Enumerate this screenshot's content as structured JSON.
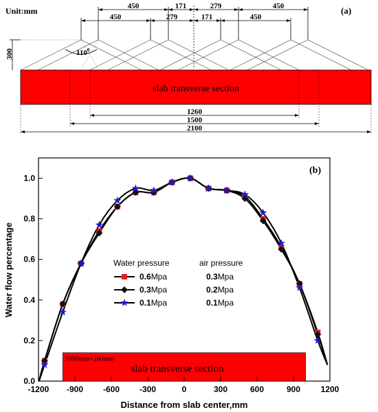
{
  "panel_a": {
    "label": "(a)",
    "unit": "Unit:mm",
    "height_dim": "300",
    "angle": "110",
    "angle_sup": "0",
    "slab_label": "slab transverse section",
    "top_dims": {
      "left_outer": "450",
      "left_inner": "450",
      "left_mid_upper": "171",
      "left_mid_lower": "279",
      "right_mid_upper": "279",
      "right_mid_lower": "171",
      "right_inner": "450",
      "right_outer": "450"
    },
    "bottom_dims": [
      "1260",
      "1500",
      "2100"
    ]
  },
  "chart_data": {
    "type": "line",
    "panel_label": "(b)",
    "xlabel": "Distance from slab center,mm",
    "ylabel": "Water flow percentage",
    "xlim": [
      -1200,
      1200
    ],
    "ylim": [
      0.0,
      1.1
    ],
    "xticks": [
      "-1200",
      "-900",
      "-600",
      "-300",
      "0",
      "300",
      "600",
      "900",
      "1200"
    ],
    "yticks": [
      "0.0",
      "0.2",
      "0.4",
      "0.6",
      "0.8",
      "1.0"
    ],
    "slab_label": "slab transverse section",
    "slab_size": "2000mm×280mm",
    "slab_x": [
      -1000,
      1000
    ],
    "slab_y": [
      0.0,
      0.14
    ],
    "x": [
      -1150,
      -1000,
      -850,
      -700,
      -550,
      -400,
      -250,
      -100,
      50,
      200,
      350,
      500,
      650,
      800,
      950,
      1100
    ],
    "series": [
      {
        "name": "0.6Mpa / 0.3Mpa",
        "color": "#e02020",
        "marker": "square",
        "values": [
          0.1,
          0.38,
          0.58,
          0.74,
          0.86,
          0.93,
          0.93,
          0.98,
          1.0,
          0.95,
          0.94,
          0.91,
          0.8,
          0.66,
          0.48,
          0.24
        ]
      },
      {
        "name": "0.3Mpa / 0.2Mpa",
        "color": "#111111",
        "marker": "diamond",
        "values": [
          0.1,
          0.38,
          0.58,
          0.73,
          0.86,
          0.93,
          0.93,
          0.98,
          1.0,
          0.95,
          0.94,
          0.9,
          0.79,
          0.65,
          0.48,
          0.23
        ]
      },
      {
        "name": "0.1Mpa / 0.1Mpa",
        "color": "#1a1ad6",
        "marker": "star",
        "values": [
          0.08,
          0.34,
          0.58,
          0.77,
          0.89,
          0.95,
          0.94,
          0.98,
          1.0,
          0.95,
          0.94,
          0.92,
          0.83,
          0.68,
          0.46,
          0.2
        ]
      }
    ],
    "legend": {
      "header_left": "Water pressure",
      "header_right": "air pressure",
      "rows": [
        {
          "water_bold": "0.6",
          "water_unit": "Mpa",
          "air_bold": "0.3",
          "air_unit": "Mpa"
        },
        {
          "water_bold": "0.3",
          "water_unit": "Mpa",
          "air_bold": "0.2",
          "air_unit": "Mpa"
        },
        {
          "water_bold": "0.1",
          "water_unit": "Mpa",
          "air_bold": "0.1",
          "air_unit": "Mpa"
        }
      ]
    }
  }
}
